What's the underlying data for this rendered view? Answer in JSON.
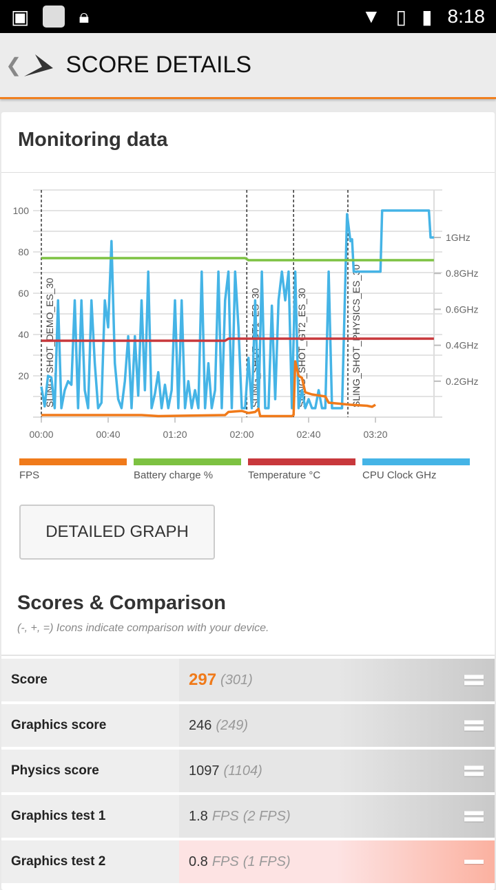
{
  "status_bar": {
    "time": "8:18"
  },
  "app_bar": {
    "title": "SCORE DETAILS"
  },
  "monitoring": {
    "title": "Monitoring data",
    "button": "DETAILED GRAPH"
  },
  "chart_data": {
    "type": "line",
    "x_ticks": [
      "00:00",
      "00:40",
      "01:20",
      "02:00",
      "02:40",
      "03:20"
    ],
    "x_tick_seconds": [
      0,
      40,
      80,
      120,
      160,
      200
    ],
    "xlim": [
      0,
      235
    ],
    "y_ticks": [
      "100",
      "80",
      "60",
      "40",
      "20"
    ],
    "y_tick_values": [
      100,
      80,
      60,
      40,
      20
    ],
    "ylim": [
      0,
      110
    ],
    "y2_ticks": [
      "1GHz",
      "0.8GHz",
      "0.6GHz",
      "0.4GHz",
      "0.2GHz"
    ],
    "y2_tick_values": [
      1,
      0.8,
      0.6,
      0.4,
      0.2
    ],
    "ghz_to_units": 87,
    "markers": [
      {
        "t": 0,
        "label": "SLING_SHOT_DEMO_ES_30"
      },
      {
        "t": 123,
        "label": "SLING_SHOT_GT1_ES_30"
      },
      {
        "t": 151,
        "label": "SLING_SHOT_GT2_ES_30"
      },
      {
        "t": 183.5,
        "label": "SLING_SHOT_PHYSICS_ES_30"
      }
    ],
    "series": [
      {
        "name": "FPS",
        "color": "#f07a1a",
        "points": [
          [
            0,
            1
          ],
          [
            60,
            1
          ],
          [
            70,
            0.5
          ],
          [
            110,
            1
          ],
          [
            112,
            2.5
          ],
          [
            120,
            3
          ],
          [
            124,
            2
          ],
          [
            128,
            2.5
          ],
          [
            130,
            4
          ],
          [
            131,
            0.5
          ],
          [
            150,
            0.5
          ],
          [
            151,
            1
          ],
          [
            152,
            27
          ],
          [
            154,
            20
          ],
          [
            156,
            19
          ],
          [
            158,
            12
          ],
          [
            162,
            11
          ],
          [
            170,
            10
          ],
          [
            172,
            7
          ],
          [
            185,
            6
          ],
          [
            195,
            5.5
          ],
          [
            198,
            5
          ],
          [
            200,
            6
          ]
        ]
      },
      {
        "name": "Battery charge %",
        "color": "#7dc242",
        "points": [
          [
            0,
            77
          ],
          [
            122,
            77
          ],
          [
            124,
            76
          ],
          [
            235,
            76
          ]
        ]
      },
      {
        "name": "Temperature °C",
        "color": "#c8383c",
        "points": [
          [
            0,
            37
          ],
          [
            110,
            37
          ],
          [
            112,
            38
          ],
          [
            235,
            38
          ]
        ]
      },
      {
        "name": "CPU Clock GHz",
        "color": "#45b4e6",
        "step": 2,
        "values": [
          0.17,
          0.06,
          0.23,
          0.22,
          0.05,
          0.65,
          0.05,
          0.15,
          0.2,
          0.18,
          0.65,
          0.05,
          0.65,
          0.15,
          0.05,
          0.65,
          0.3,
          0.05,
          0.08,
          0.65,
          0.5,
          0.98,
          0.3,
          0.1,
          0.05,
          0.2,
          0.45,
          0.05,
          0.45,
          0.12,
          0.65,
          0.15,
          0.81,
          0.05,
          0.13,
          0.25,
          0.05,
          0.18,
          0.05,
          0.15,
          0.65,
          0.05,
          0.65,
          0.05,
          0.2,
          0.05,
          0.15,
          0.05,
          0.81,
          0.05,
          0.3,
          0.05,
          0.15,
          0.81,
          0.05,
          0.65,
          0.81,
          0.05,
          0.81,
          0.5,
          0.05,
          0.05,
          0.33,
          0.05,
          0.65,
          0.05,
          0.81,
          0.05,
          0.05,
          0.62,
          0.1,
          0.65,
          0.81,
          0.65,
          0.81,
          0.05,
          0.81,
          0.05,
          0.15,
          0.05,
          0.1,
          0.05,
          0.05,
          0.15,
          0.05,
          0.05,
          0.81,
          0.05,
          0.05,
          0.05,
          0.05
        ],
        "tail": [
          [
            183,
            1.13
          ],
          [
            185,
            0.98
          ],
          [
            186,
            0.99
          ],
          [
            187,
            0.81
          ],
          [
            203,
            0.81
          ],
          [
            204,
            1.15
          ],
          [
            232,
            1.15
          ],
          [
            233,
            1.0
          ],
          [
            235,
            1.0
          ]
        ]
      }
    ]
  },
  "legend": [
    "FPS",
    "Battery charge %",
    "Temperature °C",
    "CPU Clock GHz"
  ],
  "scores": {
    "title": "Scores & Comparison",
    "subtitle": "(-, +, =) Icons indicate comparison with your device.",
    "rows": [
      {
        "label": "Score",
        "value": "297",
        "unit": "",
        "compare": "(301)",
        "icon": "equal"
      },
      {
        "label": "Graphics score",
        "value": "246",
        "unit": "",
        "compare": "(249)",
        "icon": "equal"
      },
      {
        "label": "Physics score",
        "value": "1097",
        "unit": "",
        "compare": "(1104)",
        "icon": "equal"
      },
      {
        "label": "Graphics test 1",
        "value": "1.8",
        "unit": "FPS",
        "compare": "(2 FPS)",
        "icon": "equal"
      },
      {
        "label": "Graphics test 2",
        "value": "0.8",
        "unit": "FPS",
        "compare": "(1 FPS)",
        "icon": "minus"
      }
    ]
  }
}
